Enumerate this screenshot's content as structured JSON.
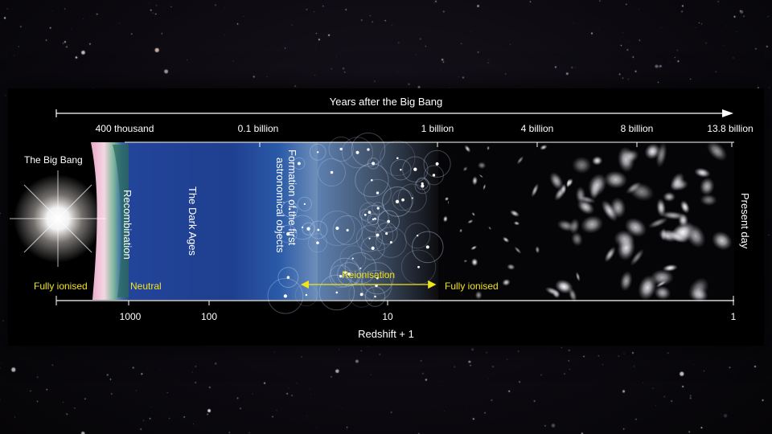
{
  "top_axis": {
    "title": "Years after the Big Bang",
    "ticks": [
      "400 thousand",
      "0.1 billion",
      "1 billion",
      "4 billion",
      "8 billion",
      "13.8 billion"
    ]
  },
  "bottom_axis": {
    "title": "Redshift + 1",
    "ticks": [
      "1000",
      "100",
      "10",
      "1"
    ]
  },
  "labels": {
    "big_bang": "The Big Bang",
    "recombination": "Recombination",
    "dark_ages": "The Dark Ages",
    "first_objects_line1": "Formation of the first",
    "first_objects_line2": "astronomical objects",
    "reionisation": "Reionisation",
    "fully_ionised_left": "Fully ionised",
    "neutral": "Neutral",
    "fully_ionised_right": "Fully ionised",
    "present_day": "Present day"
  },
  "colors": {
    "dark_ages_blue": "#1f3f8f",
    "accent_yellow": "#f2e41c",
    "background": "#000000"
  }
}
